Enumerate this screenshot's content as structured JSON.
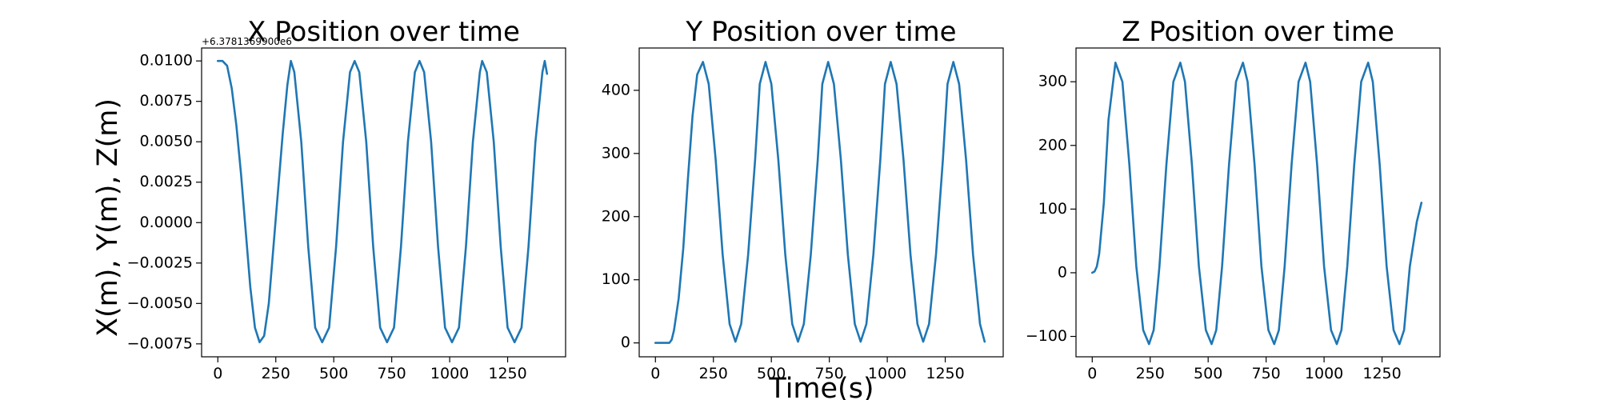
{
  "figure": {
    "ylabel": "X(m), Y(m), Z(m)",
    "xlabel": "Time(s)"
  },
  "chart_data": [
    {
      "type": "line",
      "title": "X Position over time",
      "offset_text": "+6.3781369900e6",
      "xlim": [
        -70,
        1500
      ],
      "ylim": [
        -0.0083,
        0.0108
      ],
      "xticks": [
        0,
        250,
        500,
        750,
        1000,
        1250
      ],
      "xtick_labels": [
        "0",
        "250",
        "500",
        "750",
        "1000",
        "1250"
      ],
      "yticks": [
        -0.0075,
        -0.005,
        -0.0025,
        0,
        0.0025,
        0.005,
        0.0075,
        0.01
      ],
      "ytick_labels": [
        "−0.0075",
        "−0.0050",
        "−0.0025",
        "0.0000",
        "0.0025",
        "0.0050",
        "0.0075",
        "0.0100"
      ],
      "series": [
        {
          "color": "#1f77b4",
          "x": [
            0,
            20,
            40,
            60,
            80,
            100,
            120,
            140,
            160,
            180,
            200,
            220,
            240,
            260,
            280,
            300,
            315,
            330,
            360,
            390,
            420,
            450,
            480,
            510,
            540,
            570,
            590,
            610,
            640,
            670,
            700,
            730,
            760,
            790,
            820,
            850,
            870,
            890,
            920,
            950,
            980,
            1010,
            1040,
            1070,
            1100,
            1130,
            1140,
            1160,
            1190,
            1220,
            1250,
            1280,
            1310,
            1340,
            1370,
            1400,
            1410,
            1420
          ],
          "y": [
            0.01,
            0.01,
            0.0097,
            0.0083,
            0.006,
            0.003,
            -0.0005,
            -0.004,
            -0.0065,
            -0.0074,
            -0.007,
            -0.005,
            -0.0015,
            0.002,
            0.0055,
            0.0085,
            0.01,
            0.0093,
            0.005,
            -0.0015,
            -0.0065,
            -0.0074,
            -0.0065,
            -0.0015,
            0.005,
            0.0093,
            0.01,
            0.0093,
            0.005,
            -0.0015,
            -0.0065,
            -0.0074,
            -0.0065,
            -0.0015,
            0.005,
            0.0093,
            0.01,
            0.0093,
            0.005,
            -0.0015,
            -0.0065,
            -0.0074,
            -0.0065,
            -0.0015,
            0.005,
            0.0093,
            0.01,
            0.0093,
            0.005,
            -0.0015,
            -0.0065,
            -0.0074,
            -0.0065,
            -0.0015,
            0.005,
            0.0093,
            0.01,
            0.0092
          ]
        }
      ]
    },
    {
      "type": "line",
      "title": "Y Position over time",
      "xlim": [
        -70,
        1500
      ],
      "ylim": [
        -22,
        467
      ],
      "xticks": [
        0,
        250,
        500,
        750,
        1000,
        1250
      ],
      "xtick_labels": [
        "0",
        "250",
        "500",
        "750",
        "1000",
        "1250"
      ],
      "yticks": [
        0,
        100,
        200,
        300,
        400
      ],
      "ytick_labels": [
        "0",
        "100",
        "200",
        "300",
        "400"
      ],
      "series": [
        {
          "color": "#1f77b4",
          "x": [
            0,
            30,
            60,
            70,
            80,
            100,
            120,
            140,
            160,
            180,
            205,
            230,
            260,
            290,
            320,
            345,
            370,
            400,
            430,
            450,
            475,
            500,
            530,
            560,
            590,
            615,
            640,
            670,
            700,
            720,
            745,
            770,
            800,
            830,
            860,
            885,
            910,
            940,
            970,
            990,
            1015,
            1040,
            1070,
            1100,
            1130,
            1155,
            1180,
            1210,
            1240,
            1260,
            1285,
            1310,
            1340,
            1370,
            1400,
            1420
          ],
          "y": [
            0,
            0,
            0,
            5,
            20,
            70,
            150,
            260,
            360,
            425,
            445,
            410,
            290,
            140,
            30,
            2,
            30,
            140,
            290,
            410,
            445,
            410,
            290,
            140,
            30,
            2,
            30,
            140,
            290,
            410,
            445,
            410,
            290,
            140,
            30,
            2,
            30,
            140,
            290,
            410,
            445,
            410,
            290,
            140,
            30,
            2,
            30,
            140,
            290,
            410,
            445,
            410,
            290,
            140,
            30,
            2
          ]
        }
      ]
    },
    {
      "type": "line",
      "title": "Z Position over time",
      "xlim": [
        -70,
        1500
      ],
      "ylim": [
        -132,
        353
      ],
      "xticks": [
        0,
        250,
        500,
        750,
        1000,
        1250
      ],
      "xtick_labels": [
        "0",
        "250",
        "500",
        "750",
        "1000",
        "1250"
      ],
      "yticks": [
        -100,
        0,
        100,
        200,
        300
      ],
      "ytick_labels": [
        "−100",
        "0",
        "100",
        "200",
        "300"
      ],
      "series": [
        {
          "color": "#1f77b4",
          "x": [
            0,
            10,
            20,
            30,
            50,
            70,
            100,
            130,
            160,
            190,
            220,
            245,
            265,
            290,
            320,
            350,
            380,
            400,
            430,
            460,
            490,
            515,
            535,
            560,
            590,
            620,
            650,
            670,
            700,
            730,
            760,
            785,
            805,
            830,
            860,
            890,
            920,
            940,
            970,
            1000,
            1030,
            1055,
            1075,
            1100,
            1130,
            1160,
            1190,
            1210,
            1240,
            1270,
            1300,
            1325,
            1345,
            1370,
            1400,
            1420
          ],
          "y": [
            0,
            2,
            10,
            30,
            110,
            240,
            330,
            300,
            170,
            10,
            -90,
            -112,
            -90,
            10,
            170,
            300,
            330,
            300,
            170,
            10,
            -90,
            -112,
            -90,
            10,
            170,
            300,
            330,
            300,
            170,
            10,
            -90,
            -112,
            -90,
            10,
            170,
            300,
            330,
            300,
            170,
            10,
            -90,
            -112,
            -90,
            10,
            170,
            300,
            330,
            300,
            170,
            10,
            -90,
            -112,
            -90,
            10,
            80,
            110
          ]
        }
      ]
    }
  ]
}
